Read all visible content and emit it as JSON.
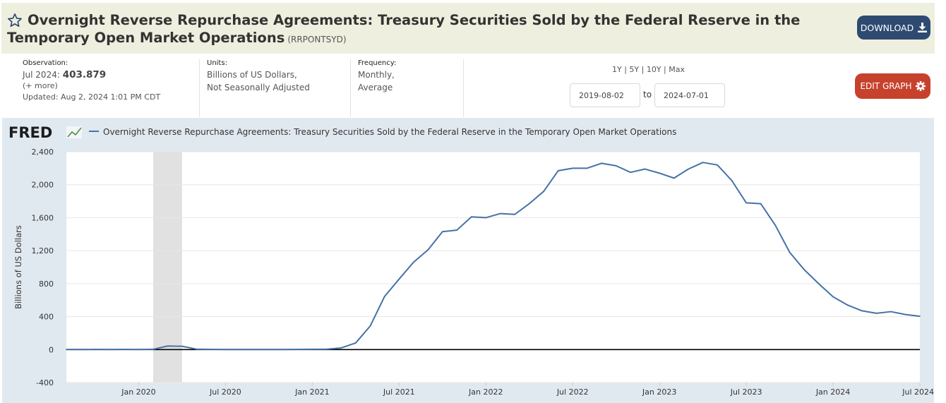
{
  "header": {
    "title": "Overnight Reverse Repurchase Agreements: Treasury Securities Sold by the Federal Reserve in the Temporary Open Market Operations",
    "series_id": "(RRPONTSYD)",
    "download_label": "DOWNLOAD",
    "star_icon": "star-icon",
    "download_icon": "download-icon"
  },
  "meta": {
    "observation_label": "Observation:",
    "observation_date": "Jul 2024:",
    "observation_value": "403.879",
    "more_label": "(+ more)",
    "updated": "Updated: Aug 2, 2024 1:01 PM CDT",
    "units_label": "Units:",
    "units_line1": "Billions of US Dollars,",
    "units_line2": "Not Seasonally Adjusted",
    "frequency_label": "Frequency:",
    "frequency_line1": "Monthly,",
    "frequency_line2": "Average"
  },
  "range": {
    "links": [
      "1Y",
      "5Y",
      "10Y",
      "Max"
    ],
    "start_date": "2019-08-02",
    "to_label": "to",
    "end_date": "2024-07-01"
  },
  "edit_graph": {
    "label": "EDIT GRAPH",
    "icon": "gear-icon"
  },
  "colors": {
    "title_bg": "#efefdf",
    "download_bg": "#2e4a71",
    "edit_bg": "#c7422d",
    "chart_bg": "#e1e9f0",
    "series_line": "#4572a7",
    "recession_shade": "#e1e1e1"
  },
  "chart_data": {
    "type": "line",
    "logo": "FRED",
    "legend": "Overnight Reverse Repurchase Agreements: Treasury Securities Sold by the Federal Reserve in the Temporary Open Market Operations",
    "ylabel": "Billions of US Dollars",
    "ylim": [
      -400,
      2400
    ],
    "yticks": [
      -400,
      0,
      400,
      800,
      1200,
      1600,
      2000,
      2400
    ],
    "ytick_labels": [
      "-400",
      "0",
      "400",
      "800",
      "1,200",
      "1,600",
      "2,000",
      "2,400"
    ],
    "xticks": [
      "2020-01",
      "2020-07",
      "2021-01",
      "2021-07",
      "2022-01",
      "2022-07",
      "2023-01",
      "2023-07",
      "2024-01",
      "2024-07"
    ],
    "xtick_labels": [
      "Jan 2020",
      "Jul 2020",
      "Jan 2021",
      "Jul 2021",
      "Jan 2022",
      "Jul 2022",
      "Jan 2023",
      "Jul 2023",
      "Jan 2024",
      "Jul 2024"
    ],
    "xlim": [
      "2019-08",
      "2024-07"
    ],
    "recession": [
      "2020-02",
      "2020-04"
    ],
    "grid": true,
    "series": [
      {
        "x": [
          "2019-08",
          "2019-09",
          "2019-10",
          "2019-11",
          "2019-12",
          "2020-01",
          "2020-02",
          "2020-03",
          "2020-04",
          "2020-05",
          "2020-06",
          "2020-07",
          "2020-08",
          "2020-09",
          "2020-10",
          "2020-11",
          "2020-12",
          "2021-01",
          "2021-02",
          "2021-03",
          "2021-04",
          "2021-05",
          "2021-06",
          "2021-07",
          "2021-08",
          "2021-09",
          "2021-10",
          "2021-11",
          "2021-12",
          "2022-01",
          "2022-02",
          "2022-03",
          "2022-04",
          "2022-05",
          "2022-06",
          "2022-07",
          "2022-08",
          "2022-09",
          "2022-10",
          "2022-11",
          "2022-12",
          "2023-01",
          "2023-02",
          "2023-03",
          "2023-04",
          "2023-05",
          "2023-06",
          "2023-07",
          "2023-08",
          "2023-09",
          "2023-10",
          "2023-11",
          "2023-12",
          "2024-01",
          "2024-02",
          "2024-03",
          "2024-04",
          "2024-05",
          "2024-06",
          "2024-07"
        ],
        "values": [
          1,
          1,
          2,
          1,
          2,
          1,
          3,
          43,
          40,
          5,
          2,
          1,
          1,
          1,
          1,
          1,
          2,
          3,
          5,
          20,
          80,
          285,
          645,
          855,
          1060,
          1210,
          1430,
          1450,
          1610,
          1600,
          1650,
          1640,
          1770,
          1920,
          2170,
          2200,
          2200,
          2260,
          2230,
          2150,
          2190,
          2140,
          2080,
          2190,
          2270,
          2240,
          2050,
          1780,
          1770,
          1510,
          1180,
          970,
          800,
          640,
          540,
          470,
          440,
          460,
          425,
          403.879
        ]
      }
    ]
  }
}
